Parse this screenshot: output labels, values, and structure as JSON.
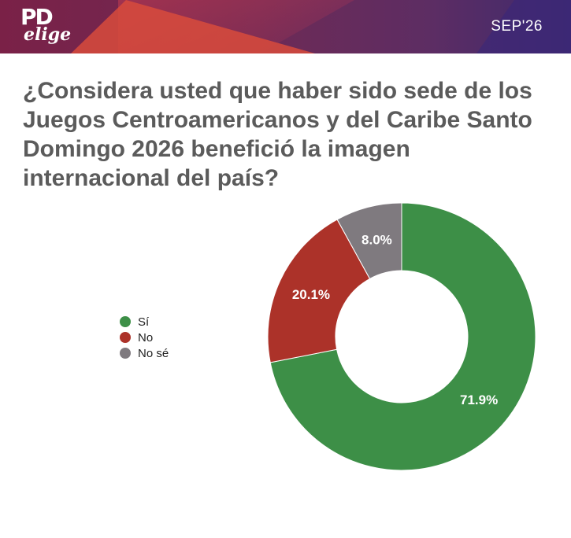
{
  "header": {
    "logo_main": "PD",
    "logo_sub": "elige",
    "date": "SEP'26",
    "colors": {
      "red": "#d84b3c",
      "purple": "#6e2a55",
      "dark_purple": "#3e2a6e"
    }
  },
  "question": "¿Considera usted que haber sido sede de los Juegos Centroamericanos y del Caribe Santo Domingo 2026 benefició la imagen internacional del país?",
  "chart_data": {
    "type": "pie",
    "donut": true,
    "start_angle_deg": 0,
    "direction": "clockwise",
    "legend_position": "left",
    "slices": [
      {
        "label": "Sí",
        "value": 71.9,
        "display": "71.9%",
        "color": "#3d8f47"
      },
      {
        "label": "No",
        "value": 20.1,
        "display": "20.1%",
        "color": "#ac3229"
      },
      {
        "label": "No sé",
        "value": 8.0,
        "display": "8.0%",
        "color": "#7f7a7f"
      }
    ]
  }
}
